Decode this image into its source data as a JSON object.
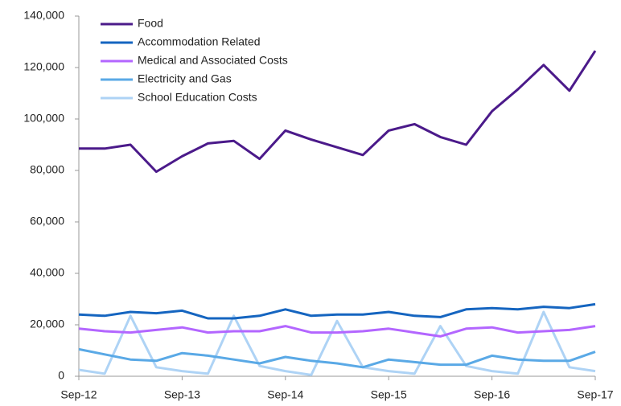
{
  "chart_data": {
    "type": "line",
    "categories": [
      "Sep-12",
      null,
      null,
      null,
      "Sep-13",
      null,
      null,
      null,
      "Sep-14",
      null,
      null,
      null,
      "Sep-15",
      null,
      null,
      null,
      "Sep-16",
      null,
      null,
      null,
      "Sep-17"
    ],
    "series": [
      {
        "name": "Food",
        "color": "#4b1a8a",
        "values": [
          88500,
          88500,
          90000,
          79500,
          85500,
          90500,
          91500,
          84500,
          95500,
          92000,
          89000,
          86000,
          95500,
          98000,
          93000,
          90000,
          103000,
          111500,
          121000,
          111000,
          126500
        ]
      },
      {
        "name": "Accommodation Related",
        "color": "#1565c0",
        "values": [
          24000,
          23500,
          25000,
          24500,
          25500,
          22500,
          22500,
          23500,
          26000,
          23500,
          24000,
          24000,
          25000,
          23500,
          23000,
          26000,
          26500,
          26000,
          27000,
          26500,
          28000
        ]
      },
      {
        "name": "Medical and Associated Costs",
        "color": "#b366ff",
        "values": [
          18500,
          17500,
          17000,
          18000,
          19000,
          17000,
          17500,
          17500,
          19500,
          17000,
          17000,
          17500,
          18500,
          17000,
          15500,
          18500,
          19000,
          17000,
          17500,
          18000,
          19500
        ]
      },
      {
        "name": "Electricity and Gas",
        "color": "#5aa9e6",
        "values": [
          10500,
          8500,
          6500,
          6000,
          9000,
          8000,
          6500,
          5000,
          7500,
          6000,
          5000,
          3500,
          6500,
          5500,
          4500,
          4500,
          8000,
          6500,
          6000,
          6000,
          9500
        ]
      },
      {
        "name": "School Education Costs",
        "color": "#aed3f5",
        "values": [
          2500,
          1000,
          23500,
          3500,
          2000,
          1000,
          23500,
          4000,
          2000,
          500,
          21500,
          3500,
          2000,
          1000,
          19500,
          4000,
          2000,
          1000,
          25000,
          3500,
          2000
        ]
      }
    ],
    "ylim": [
      0,
      140000
    ],
    "yticks": [
      0,
      {
        "value": 20000,
        "label": "20,000"
      },
      {
        "value": 40000,
        "label": "40,000"
      },
      {
        "value": 60000,
        "label": "60,000"
      },
      {
        "value": 80000,
        "label": "80,000"
      },
      {
        "value": 100000,
        "label": "100,000"
      },
      {
        "value": 120000,
        "label": "120,000"
      },
      {
        "value": 140000,
        "label": "140,000"
      }
    ],
    "grid": false,
    "legend": "top-left"
  }
}
